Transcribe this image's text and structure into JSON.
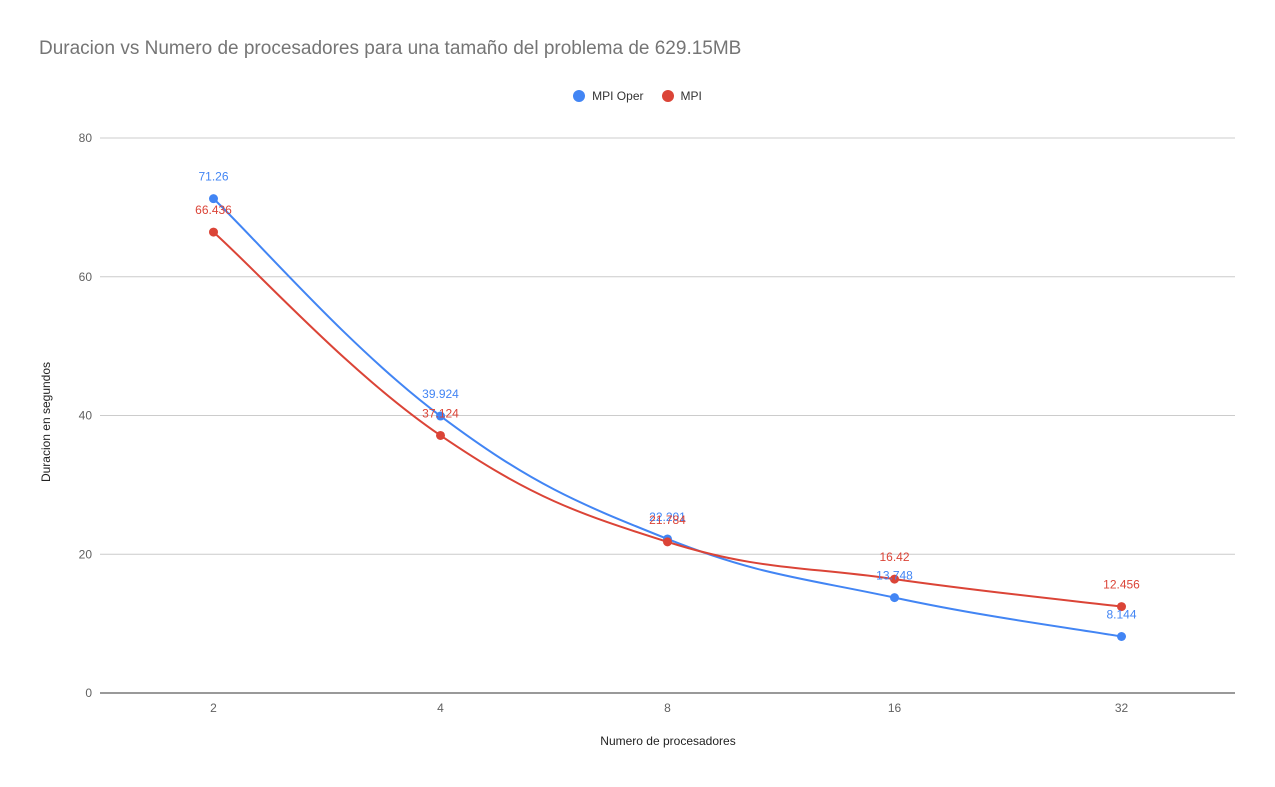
{
  "chart_data": {
    "type": "line",
    "title": "Duracion vs Numero de procesadores para una tamaño del problema de 629.15MB",
    "xlabel": "Numero de procesadores",
    "ylabel": "Duracion en segundos",
    "categories": [
      "2",
      "4",
      "8",
      "16",
      "32"
    ],
    "ylim": [
      0,
      80
    ],
    "yticks": [
      0,
      20,
      40,
      60,
      80
    ],
    "grid": true,
    "legend_position": "top",
    "smooth": true,
    "series": [
      {
        "name": "MPI Oper",
        "color": "#4285f4",
        "values": [
          71.26,
          39.924,
          22.201,
          13.748,
          8.144
        ],
        "labels": [
          "71.26",
          "39.924",
          "22.201",
          "13.748",
          "8.144"
        ]
      },
      {
        "name": "MPI",
        "color": "#db4437",
        "values": [
          66.436,
          37.124,
          21.784,
          16.42,
          12.456
        ],
        "labels": [
          "66.436",
          "37.124",
          "21.784",
          "16.42",
          "12.456"
        ]
      }
    ]
  }
}
